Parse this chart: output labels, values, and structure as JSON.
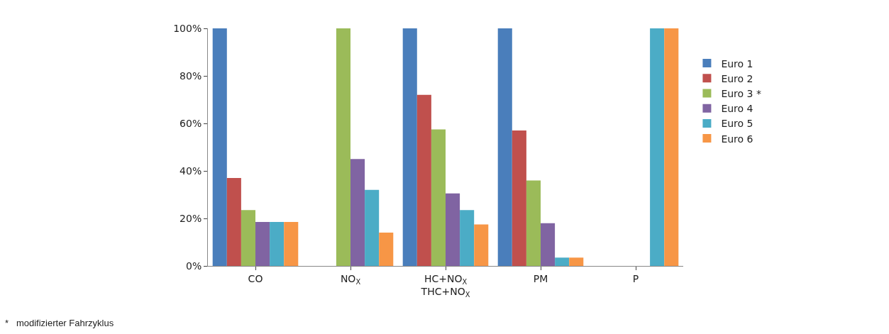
{
  "chart_data": {
    "type": "bar",
    "categories": [
      "CO",
      "NO$_{X}$",
      "HC+NO$_{X}$\nTHC+NO$_{X}$",
      "PM",
      "P"
    ],
    "series": [
      {
        "name": "Euro 1",
        "color": "#4a7ebb",
        "values": [
          100,
          null,
          100,
          100,
          null
        ]
      },
      {
        "name": "Euro 2",
        "color": "#c0504d",
        "values": [
          37,
          null,
          72,
          57,
          null
        ]
      },
      {
        "name": "Euro 3 *",
        "color": "#9bbb59",
        "values": [
          23.5,
          100,
          57.5,
          36,
          null
        ]
      },
      {
        "name": "Euro 4",
        "color": "#8064a2",
        "values": [
          18.5,
          45,
          30.5,
          18,
          null
        ]
      },
      {
        "name": "Euro 5",
        "color": "#4bacc6",
        "values": [
          18.5,
          32,
          23.5,
          3.5,
          100
        ]
      },
      {
        "name": "Euro 6",
        "color": "#f79646",
        "values": [
          18.5,
          14,
          17.5,
          3.5,
          100
        ]
      }
    ],
    "ylim": [
      0,
      100
    ],
    "yticks": [
      {
        "value": 0,
        "label": "0%"
      },
      {
        "value": 20,
        "label": "20%"
      },
      {
        "value": 40,
        "label": "40%"
      },
      {
        "value": 60,
        "label": "60%"
      },
      {
        "value": 80,
        "label": "80%"
      },
      {
        "value": 100,
        "label": "100%"
      }
    ],
    "grid": false,
    "legend": "right",
    "annotations": [
      "*   modifizierter Fahrzyklus"
    ]
  }
}
